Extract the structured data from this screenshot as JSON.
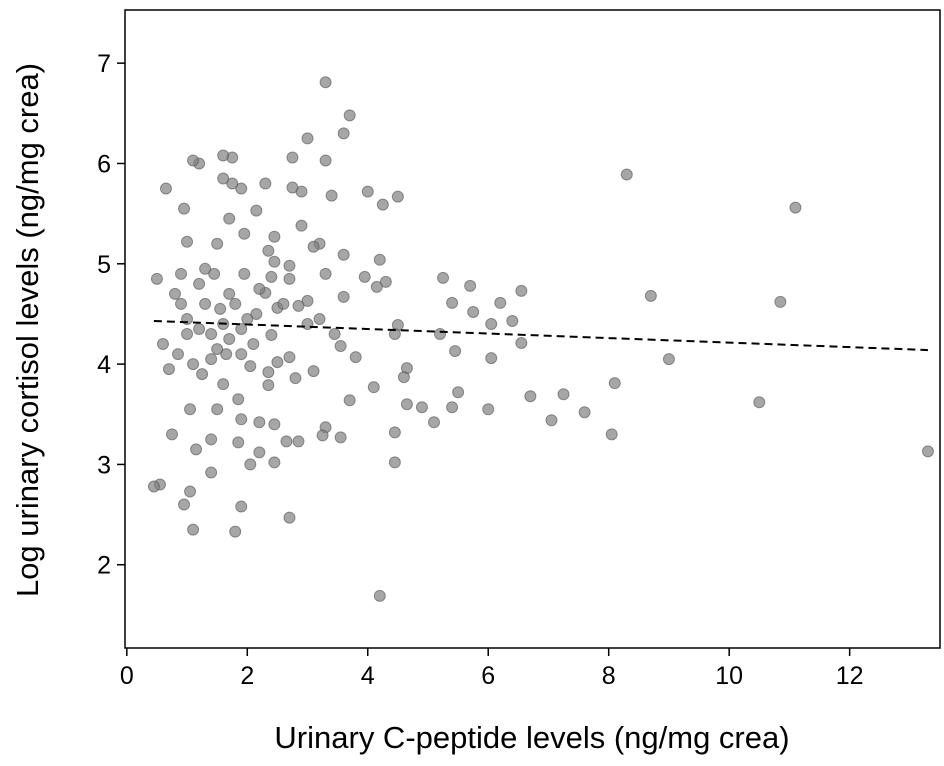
{
  "chart_data": {
    "type": "scatter",
    "xlabel": "Urinary C-peptide levels (ng/mg crea)",
    "ylabel": "Log urinary cortisol levels (ng/mg crea)",
    "xlim": [
      -0.03,
      13.5
    ],
    "xticks": [
      0,
      2,
      4,
      6,
      8,
      10,
      12
    ],
    "ylim": [
      1.17,
      7.53
    ],
    "yticks": [
      2,
      3,
      4,
      5,
      6,
      7
    ],
    "color": "#808080",
    "x": [
      8.3,
      11.1,
      8.7,
      10.85,
      9.0,
      10.5,
      13.3,
      8.1,
      8.05,
      7.6,
      7.25,
      7.05,
      6.7,
      6.55,
      6.55,
      6.4,
      6.2,
      6.05,
      6.05,
      6.0,
      5.75,
      5.7,
      5.5,
      5.45,
      5.4,
      5.4,
      5.25,
      5.2,
      5.1,
      4.9,
      4.65,
      4.65,
      4.6,
      4.5,
      4.45,
      4.45,
      4.45,
      4.5,
      4.3,
      4.25,
      4.2,
      4.2,
      4.15,
      4.1,
      4.0,
      3.95,
      3.8,
      3.7,
      3.7,
      3.6,
      3.6,
      3.6,
      3.55,
      3.55,
      3.45,
      3.4,
      3.3,
      3.3,
      3.3,
      3.3,
      3.25,
      3.2,
      3.2,
      3.1,
      3.1,
      3.0,
      3.0,
      3.0,
      2.9,
      2.9,
      2.85,
      2.8,
      2.85,
      2.75,
      2.75,
      2.7,
      2.7,
      2.7,
      2.7,
      2.65,
      2.5,
      2.5,
      2.45,
      2.45,
      2.45,
      2.45,
      2.4,
      2.4,
      2.35,
      2.35,
      2.35,
      2.3,
      2.3,
      2.2,
      2.2,
      2.15,
      2.15,
      2.1,
      2.05,
      2.05,
      1.95,
      1.95,
      1.9,
      1.9,
      1.9,
      1.9,
      1.85,
      1.85,
      1.8,
      1.75,
      1.75,
      1.7,
      1.7,
      1.65,
      1.6,
      1.6,
      1.6,
      1.55,
      1.5,
      1.5,
      1.45,
      1.4,
      1.4,
      1.4,
      1.3,
      1.25,
      1.2,
      1.2,
      1.15,
      1.1,
      1.1,
      1.05,
      1.05,
      1.0,
      1.0,
      0.95,
      0.95,
      0.9,
      0.85,
      0.8,
      0.75,
      0.7,
      0.65,
      0.6,
      0.55,
      0.5,
      0.45,
      1.0,
      1.3,
      1.5,
      1.7,
      1.8,
      2.0,
      2.2,
      1.1,
      0.9,
      1.4,
      1.6,
      2.6,
      1.2,
      1.9
    ],
    "y": [
      5.89,
      5.56,
      4.68,
      4.62,
      4.05,
      3.62,
      3.13,
      3.81,
      3.3,
      3.52,
      3.7,
      3.44,
      3.68,
      4.73,
      4.21,
      4.43,
      4.61,
      4.4,
      4.06,
      3.55,
      4.52,
      4.78,
      3.72,
      4.13,
      4.61,
      3.57,
      4.86,
      4.3,
      3.42,
      3.57,
      3.6,
      3.96,
      3.87,
      4.39,
      4.3,
      3.32,
      3.02,
      5.67,
      4.82,
      5.59,
      5.04,
      1.69,
      4.77,
      3.77,
      5.72,
      4.87,
      4.07,
      6.48,
      3.64,
      6.3,
      5.09,
      4.67,
      4.18,
      3.27,
      4.3,
      5.68,
      6.81,
      6.03,
      4.9,
      3.37,
      3.29,
      5.2,
      4.45,
      3.93,
      5.17,
      6.25,
      4.63,
      4.4,
      5.38,
      5.72,
      4.58,
      3.86,
      3.23,
      6.06,
      5.76,
      4.98,
      4.85,
      4.07,
      2.47,
      3.23,
      4.56,
      4.02,
      5.27,
      5.02,
      3.4,
      3.02,
      4.87,
      4.29,
      5.13,
      3.92,
      3.79,
      5.8,
      4.71,
      3.42,
      3.12,
      5.53,
      4.5,
      4.2,
      3.98,
      3.0,
      5.3,
      4.9,
      5.75,
      4.35,
      3.45,
      2.58,
      3.65,
      3.22,
      2.33,
      6.06,
      5.8,
      5.45,
      4.7,
      4.1,
      6.08,
      5.85,
      3.8,
      4.55,
      5.2,
      3.55,
      4.9,
      4.3,
      3.25,
      2.92,
      4.6,
      3.9,
      6.0,
      4.8,
      3.15,
      6.03,
      2.35,
      3.55,
      2.73,
      5.22,
      4.45,
      5.55,
      2.6,
      4.9,
      4.1,
      4.7,
      3.3,
      3.95,
      5.75,
      4.2,
      2.8,
      4.85,
      2.78,
      4.3,
      4.95,
      4.15,
      4.25,
      4.6,
      4.45,
      4.75,
      4.0,
      4.6,
      4.05,
      4.4,
      4.6,
      4.35,
      4.1
    ],
    "trend": {
      "x": [
        0.45,
        13.3
      ],
      "y": [
        4.43,
        4.14
      ]
    }
  }
}
